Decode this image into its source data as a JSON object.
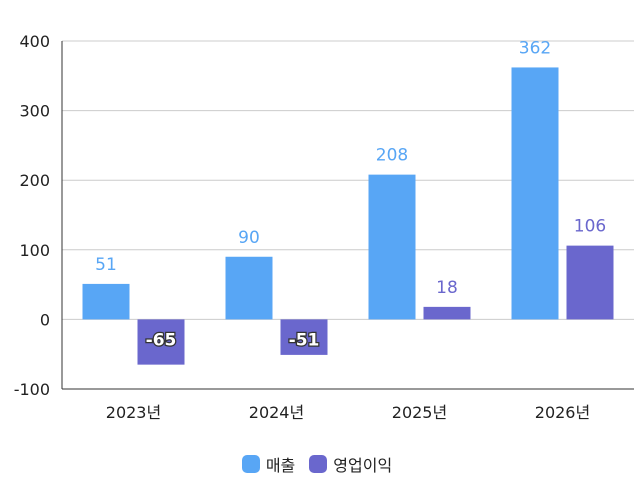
{
  "chart_data": {
    "type": "bar",
    "categories": [
      "2023년",
      "2024년",
      "2025년",
      "2026년"
    ],
    "series": [
      {
        "name": "매출",
        "values": [
          51,
          90,
          208,
          362
        ],
        "color": "#58a6f5"
      },
      {
        "name": "영업이익",
        "values": [
          -65,
          -51,
          18,
          106
        ],
        "color": "#6a67cd"
      }
    ],
    "ylim": [
      -100,
      400
    ],
    "yticks": [
      -100,
      0,
      100,
      200,
      300,
      400
    ],
    "grid": true,
    "legend": "bottom-center",
    "title": "",
    "xlabel": "",
    "ylabel": ""
  }
}
